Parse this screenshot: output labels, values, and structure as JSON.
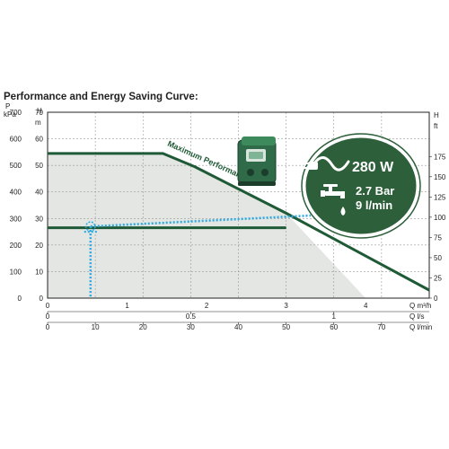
{
  "title": "Performance and Energy Saving Curve:",
  "colors": {
    "curve": "#1f5a36",
    "shade": "#e3e6e3",
    "dotted": "#2ba9e0",
    "badge": "#2c5f3a",
    "grid": "#999999",
    "axis": "#222222"
  },
  "icons": [
    "pump-device-icon",
    "power-plug-icon",
    "water-tap-icon",
    "water-drop-icon"
  ],
  "badge": {
    "power": "280 W",
    "pressure": "2.7 Bar",
    "flow": "9 l/min"
  },
  "chart_data": {
    "type": "line",
    "title": "Performance and Energy Saving Curve:",
    "left_axes": [
      {
        "name": "P",
        "unit": "kPa",
        "range": [
          0,
          700
        ],
        "ticks": [
          "0",
          "100",
          "200",
          "300",
          "400",
          "500",
          "600",
          "700"
        ]
      },
      {
        "name": "H",
        "unit": "m",
        "range": [
          0,
          70
        ],
        "ticks": [
          "0",
          "10",
          "20",
          "30",
          "40",
          "50",
          "60",
          "70"
        ]
      }
    ],
    "right_axis": {
      "name": "H",
      "unit": "ft",
      "ticks": [
        "0",
        "25",
        "50",
        "75",
        "100",
        "125",
        "150",
        "175"
      ]
    },
    "bottom_axes": [
      {
        "unit": "Q m³/h",
        "range": [
          0,
          4.8
        ],
        "ticks": [
          "0",
          "1",
          "2",
          "3",
          "4"
        ]
      },
      {
        "unit": "Q l/s",
        "ticks": [
          "0",
          "0.5",
          "1"
        ]
      },
      {
        "unit": "Q l/min",
        "ticks": [
          "0",
          "10",
          "20",
          "30",
          "40",
          "50",
          "60",
          "70"
        ]
      }
    ],
    "grid": true,
    "series": [
      {
        "name": "Maximum Performance",
        "x": [
          0,
          1.45,
          1.85,
          3.0,
          4.8
        ],
        "y": [
          54.5,
          54.5,
          49.5,
          32,
          3
        ]
      },
      {
        "name": "",
        "x": [
          0,
          3.0
        ],
        "y": [
          26.5,
          26.5
        ]
      }
    ],
    "operating_point": {
      "q_lmin": 9,
      "h_m": 27,
      "pressure_bar": 2.7,
      "power_w": 280
    }
  }
}
